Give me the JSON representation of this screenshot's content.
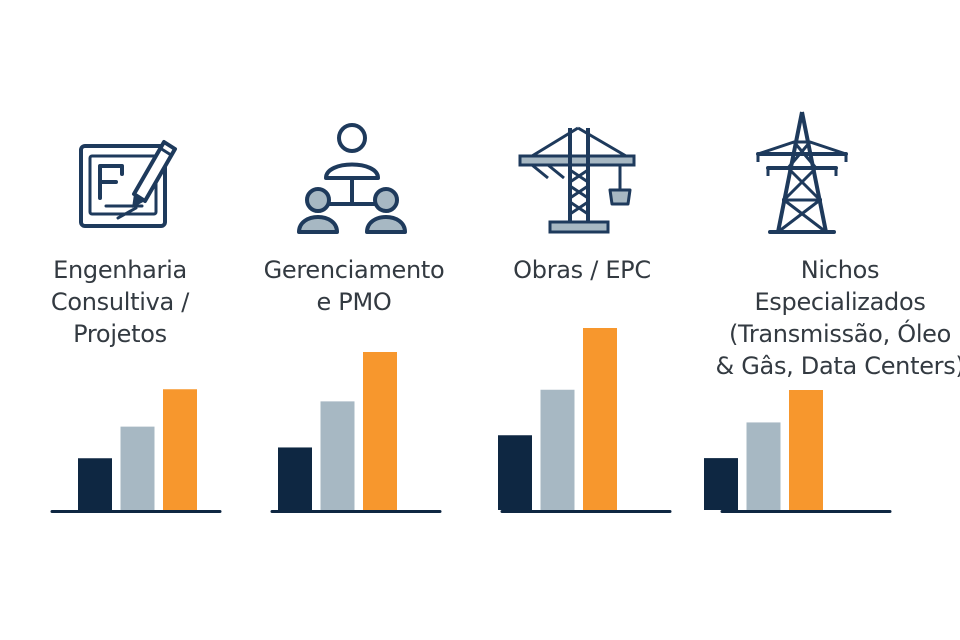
{
  "colors": {
    "series": [
      "#0e2742",
      "#a7b8c3",
      "#f7972d"
    ],
    "icon_stroke": "#1e3a5c",
    "icon_fill": "#a7b8c3",
    "axis": "#0e2742",
    "text": "#333a41"
  },
  "segments": [
    {
      "icon": "drafting-pencil-icon",
      "label_lines": [
        "Engenharia",
        "Consultiva /",
        "Projetos"
      ]
    },
    {
      "icon": "team-hierarchy-icon",
      "label_lines": [
        "Gerenciamento",
        "e PMO"
      ]
    },
    {
      "icon": "construction-crane-icon",
      "label_lines": [
        "Obras / EPC"
      ]
    },
    {
      "icon": "transmission-tower-icon",
      "label_lines": [
        "Nichos",
        "Especializados",
        "(Transmissão, Óleo",
        "& Gâs, Data Centers)"
      ]
    }
  ],
  "chart_data": [
    {
      "type": "bar",
      "segment": "Engenharia Consultiva / Projetos",
      "categories": [
        "",
        "",
        ""
      ],
      "values": [
        18,
        29,
        42
      ],
      "ylim": [
        0,
        48
      ],
      "grid": false
    },
    {
      "type": "bar",
      "segment": "Gerenciamento e PMO",
      "categories": [
        "",
        "",
        ""
      ],
      "values": [
        19,
        33,
        48
      ],
      "ylim": [
        0,
        48
      ],
      "grid": false
    },
    {
      "type": "bar",
      "segment": "Obras / EPC",
      "categories": [
        "",
        "",
        ""
      ],
      "values": [
        23,
        37,
        56
      ],
      "ylim": [
        0,
        56
      ],
      "grid": false
    },
    {
      "type": "bar",
      "segment": "Nichos Especializados (Transmissão, Óleo & Gâs, Data Centers)",
      "categories": [
        "",
        "",
        ""
      ],
      "values": [
        16,
        27,
        37
      ],
      "ylim": [
        0,
        37
      ],
      "grid": false
    }
  ]
}
